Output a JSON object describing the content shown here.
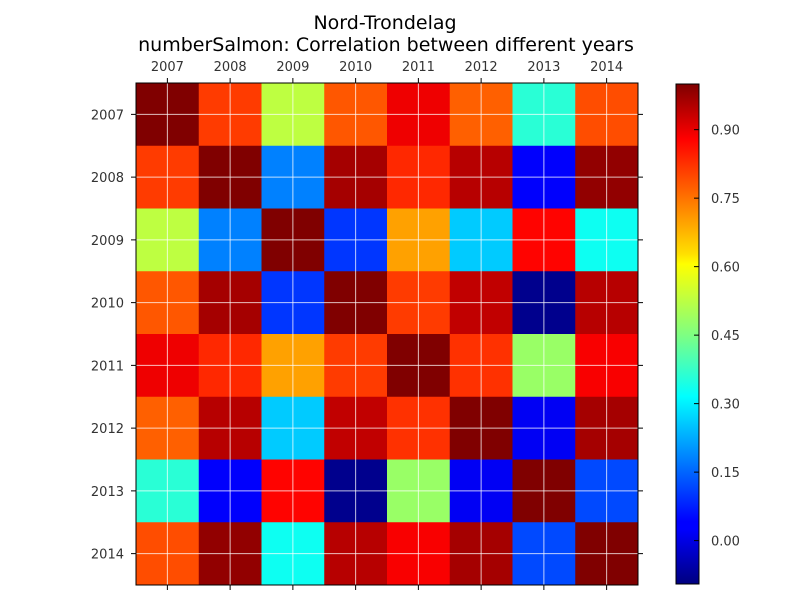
{
  "chart_data": {
    "type": "heatmap",
    "title": "Nord-Trondelag",
    "subtitle": "numberSalmon: Correlation between different years",
    "x_categories": [
      "2007",
      "2008",
      "2009",
      "2010",
      "2011",
      "2012",
      "2013",
      "2014"
    ],
    "y_categories": [
      "2007",
      "2008",
      "2009",
      "2010",
      "2011",
      "2012",
      "2013",
      "2014"
    ],
    "matrix": [
      [
        1.0,
        0.8,
        0.52,
        0.77,
        0.88,
        0.76,
        0.36,
        0.78
      ],
      [
        0.8,
        1.0,
        0.18,
        0.96,
        0.82,
        0.94,
        0.04,
        0.98
      ],
      [
        0.52,
        0.18,
        1.0,
        0.1,
        0.69,
        0.26,
        0.86,
        0.33
      ],
      [
        0.77,
        0.96,
        0.1,
        1.0,
        0.8,
        0.93,
        -0.08,
        0.94
      ],
      [
        0.88,
        0.82,
        0.69,
        0.8,
        1.0,
        0.81,
        0.48,
        0.87
      ],
      [
        0.76,
        0.94,
        0.26,
        0.93,
        0.81,
        1.0,
        0.03,
        0.96
      ],
      [
        0.36,
        0.04,
        0.86,
        -0.08,
        0.48,
        0.03,
        1.0,
        0.12
      ],
      [
        0.78,
        0.98,
        0.33,
        0.94,
        0.87,
        0.96,
        0.12,
        1.0
      ]
    ],
    "colorbar": {
      "colormap": "jet",
      "vmin": -0.095,
      "vmax": 1.0,
      "ticks": [
        0.0,
        0.15,
        0.3,
        0.45,
        0.6,
        0.75,
        0.9
      ],
      "tick_labels": [
        "0.00",
        "0.15",
        "0.30",
        "0.45",
        "0.60",
        "0.75",
        "0.90"
      ]
    },
    "grid": true,
    "x_axis_position": "top"
  }
}
